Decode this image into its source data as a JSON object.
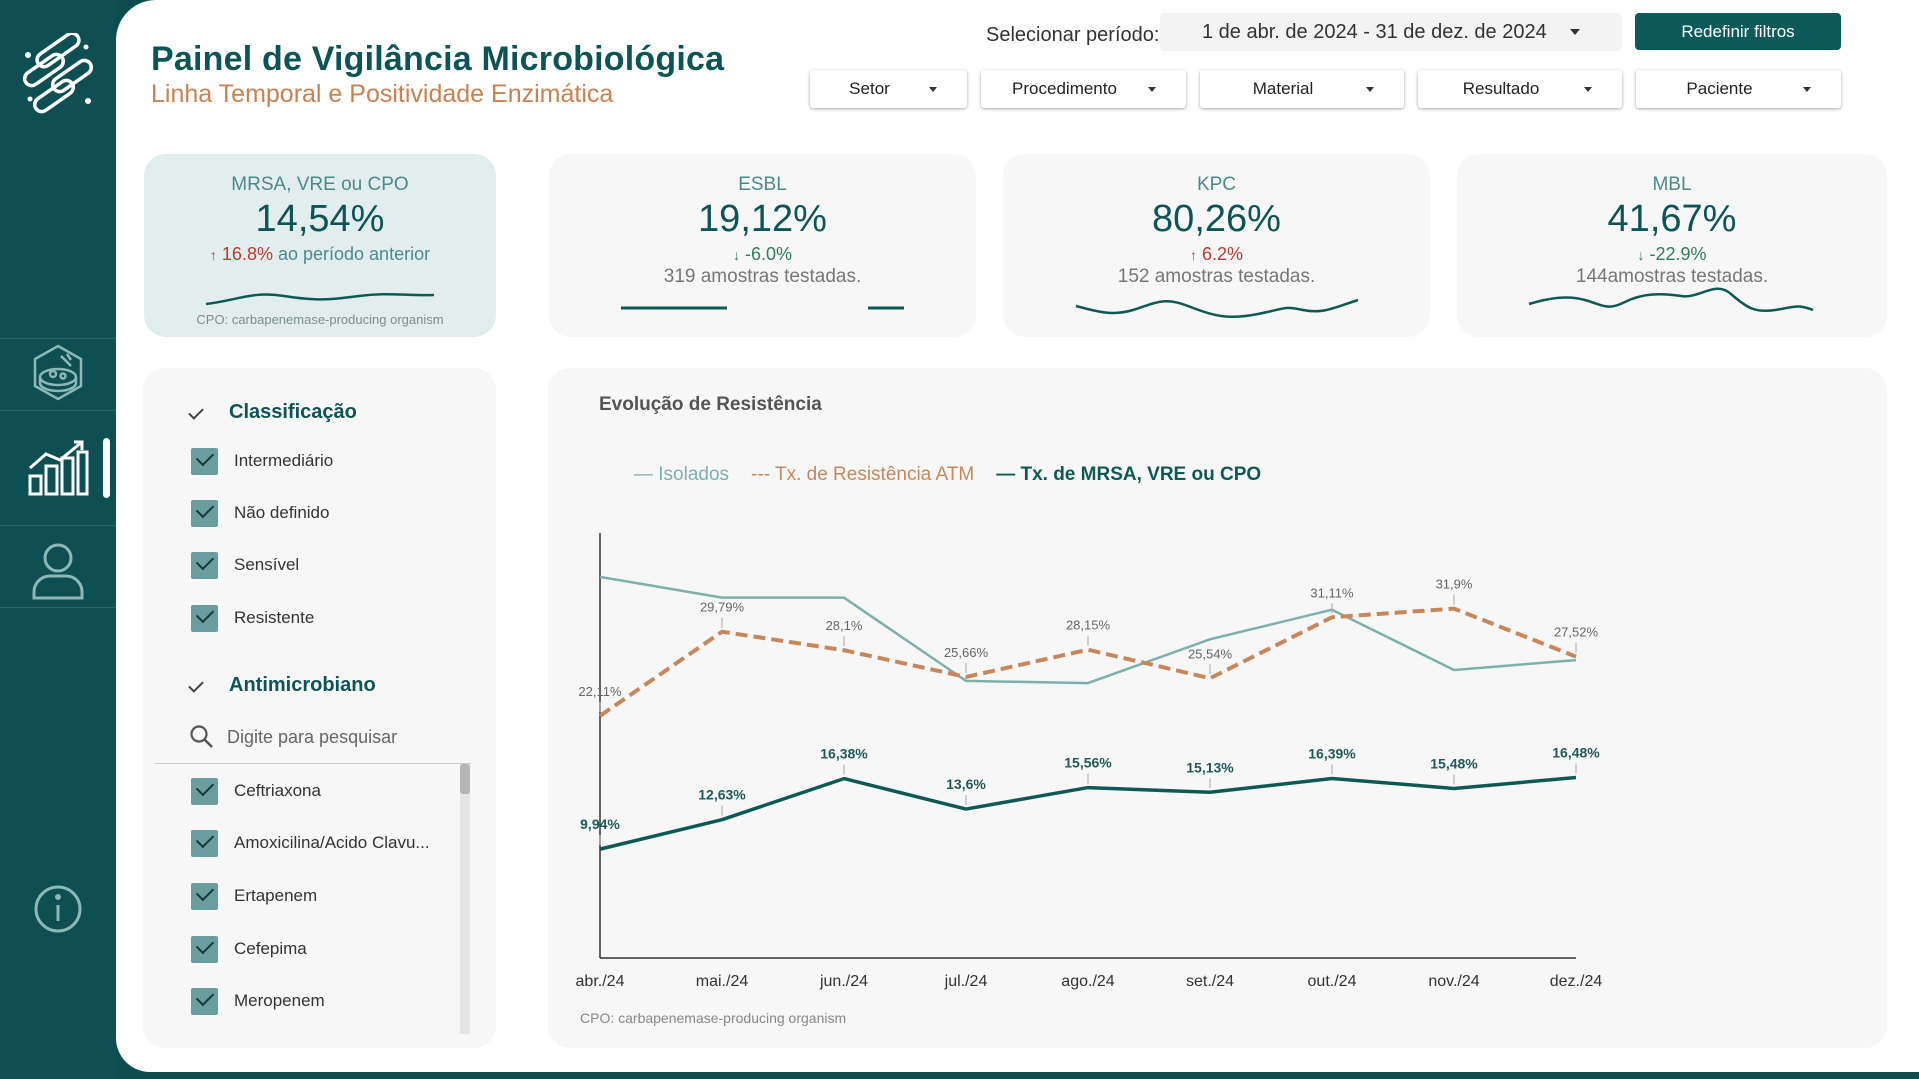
{
  "header": {
    "title": "Painel de Vigilância Microbiológica",
    "subtitle": "Linha Temporal e Positividade Enzimática",
    "period_label": "Selecionar período:",
    "period_value": "1 de abr. de 2024 - 31 de dez. de 2024",
    "reset_label": "Redefinir filtros",
    "filters": [
      "Setor",
      "Procedimento",
      "Material",
      "Resultado",
      "Paciente"
    ]
  },
  "colors": {
    "brand": "#0d4f52",
    "accent_orange": "#c8814f",
    "isolados": "#7fb0ad",
    "resistencia": "#c8875a",
    "mrsa": "#0d5a55",
    "up_red": "#c0392b",
    "down_green": "#2e7d5b"
  },
  "sidebar_icons": [
    "microbe-logo-icon",
    "petri-dish-icon",
    "bar-chart-icon",
    "user-icon",
    "info-icon"
  ],
  "kpis": [
    {
      "title": "MRSA, VRE ou CPO",
      "value": "14,54%",
      "arrow": "↑",
      "delta": "16.8%",
      "delta_suffix": " ao período anterior",
      "note": "CPO: carbapenemase-producing organism"
    },
    {
      "title": "ESBL",
      "value": "19,12%",
      "arrow": "↓",
      "delta": "-6.0%",
      "samples": "319 amostras testadas."
    },
    {
      "title": "KPC",
      "value": "80,26%",
      "arrow": "↑",
      "delta": "6.2%",
      "samples": "152  amostras testadas."
    },
    {
      "title": "MBL",
      "value": "41,67%",
      "arrow": "↓",
      "delta": "-22.9%",
      "samples": "144amostras testadas."
    }
  ],
  "classification": {
    "heading": "Classificação",
    "items": [
      "Intermediário",
      "Não definido",
      "Sensível",
      "Resistente"
    ]
  },
  "antimicrobial": {
    "heading": "Antimicrobiano",
    "search_placeholder": "Digite para pesquisar",
    "items": [
      "Ceftriaxona",
      "Amoxicilina/Acido Clavu...",
      "Ertapenem",
      "Cefepima",
      "Meropenem"
    ]
  },
  "chart": {
    "title": "Evolução de Resistência",
    "footnote": "CPO: carbapenemase-producing organism",
    "legend": [
      "— Isolados",
      "--- Tx. de Resistência ATM",
      "— Tx. de MRSA, VRE ou CPO"
    ]
  },
  "chart_data": {
    "type": "line",
    "title": "Evolução de Resistência",
    "categories": [
      "abr./24",
      "mai./24",
      "jun./24",
      "jul./24",
      "ago./24",
      "set./24",
      "out./24",
      "nov./24",
      "dez./24"
    ],
    "ylim": [
      0,
      42
    ],
    "series": [
      {
        "name": "Isolados",
        "values": [
          34.8,
          32.9,
          32.9,
          25.3,
          25.1,
          29.1,
          31.8,
          26.3,
          27.2
        ],
        "labels": []
      },
      {
        "name": "Tx. de Resistência ATM",
        "values": [
          22.11,
          29.79,
          28.1,
          25.66,
          28.15,
          25.54,
          31.11,
          31.9,
          27.52
        ],
        "labels": [
          "22,11%",
          "29,79%",
          "28,1%",
          "25,66%",
          "28,15%",
          "25,54%",
          "31,11%",
          "31,9%",
          "27,52%"
        ]
      },
      {
        "name": "Tx. de MRSA, VRE ou CPO",
        "values": [
          9.94,
          12.63,
          16.38,
          13.6,
          15.56,
          15.13,
          16.39,
          15.48,
          16.48
        ],
        "labels": [
          "9,94%",
          "12,63%",
          "16,38%",
          "13,6%",
          "15,56%",
          "15,13%",
          "16,39%",
          "15,48%",
          "16,48%"
        ]
      }
    ],
    "grid": false,
    "legend_position": "top-left"
  }
}
